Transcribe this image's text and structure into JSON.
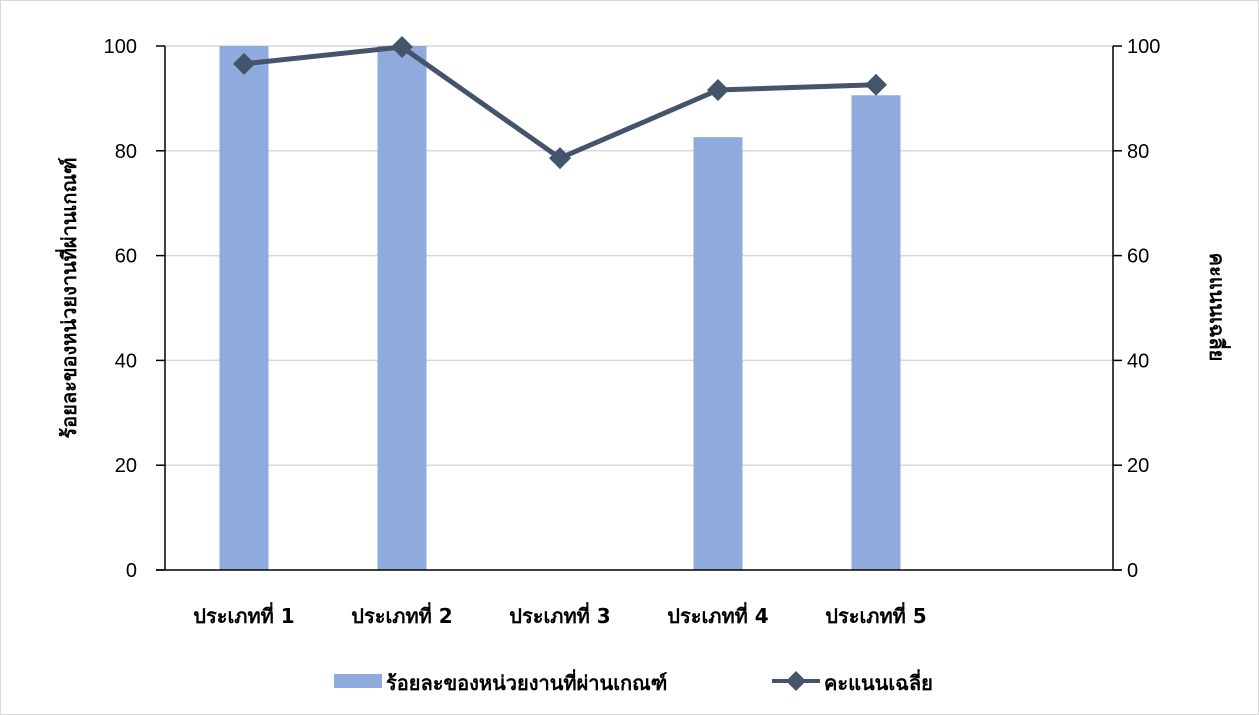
{
  "colors": {
    "bar": "#8faadc",
    "line": "#44546a",
    "grid": "#d9d9d9",
    "axis": "#000000"
  },
  "chart_data": {
    "type": "bar",
    "categories": [
      "ประเภทที่ 1",
      "ประเภทที่ 2",
      "ประเภทที่ 3",
      "ประเภทที่ 4",
      "ประเภทที่ 5",
      ""
    ],
    "series": [
      {
        "name": "ร้อยละของหน่วยงานที่ผ่านเกณฑ์",
        "type": "bar",
        "axis": "left",
        "values": [
          100,
          100,
          0,
          82.6,
          90.6,
          null
        ]
      },
      {
        "name": "คะแนนเฉลี่ย",
        "type": "line",
        "marker": "diamond",
        "axis": "right",
        "values": [
          96.6,
          99.8,
          78.6,
          91.6,
          92.6,
          null
        ]
      }
    ],
    "ylabel": "ร้อยละของหน่วยงานที่ผ่านเกณฑ์",
    "y2label": "คะแนนเฉลี่ย",
    "ylim": [
      0,
      100
    ],
    "y2lim": [
      0,
      100
    ],
    "yticks": [
      0,
      20,
      40,
      60,
      80,
      100
    ],
    "y2ticks": [
      0,
      20,
      40,
      60,
      80,
      100
    ],
    "grid": true,
    "legend_position": "bottom"
  }
}
